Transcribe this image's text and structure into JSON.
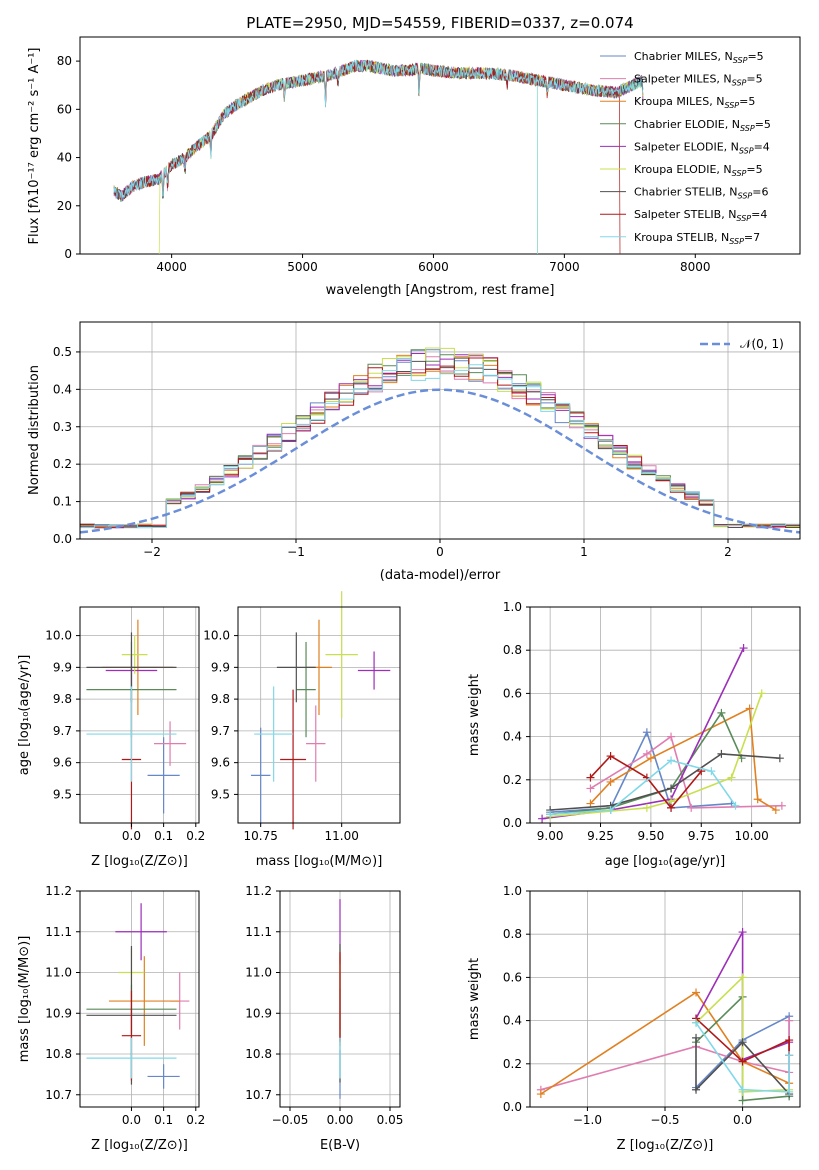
{
  "chart_data": [
    {
      "type": "line",
      "title": "PLATE=2950, MJD=54559, FIBERID=0337, z=0.074",
      "xlabel": "wavelength [Angstrom, rest frame]",
      "ylabel": "Flux [fλ10⁻¹⁷ erg cm⁻² s⁻¹ A⁻¹]",
      "xlim": [
        3300,
        8800
      ],
      "ylim": [
        0,
        90
      ],
      "xticks": [
        4000,
        5000,
        6000,
        7000,
        8000
      ],
      "yticks": [
        0,
        20,
        40,
        60,
        80
      ],
      "grid": false,
      "legend_position": "top-right",
      "spectrum_anchor_x": [
        3560,
        3620,
        3700,
        3800,
        3900,
        4000,
        4100,
        4200,
        4300,
        4400,
        4500,
        4600,
        4700,
        4800,
        4900,
        5000,
        5100,
        5200,
        5300,
        5400,
        5500,
        5600,
        5700,
        5800,
        5900,
        6000,
        6200,
        6400,
        6600,
        6800,
        7000,
        7200,
        7400,
        7600
      ],
      "spectrum_anchor_y": [
        26,
        24,
        28,
        30,
        31,
        37,
        40,
        45,
        49,
        58,
        62,
        65,
        68,
        70,
        71,
        72,
        73,
        74,
        76,
        78,
        78,
        77,
        76,
        76,
        77,
        76,
        75,
        75,
        74,
        72,
        70,
        68,
        67,
        72
      ],
      "series": [
        {
          "name": "Chabrier MILES, N_SSP=5",
          "label_main": "Chabrier MILES, N",
          "label_sub": "SSP",
          "label_end": "=5",
          "color": "#6687c8"
        },
        {
          "name": "Salpeter MILES, N_SSP=5",
          "label_main": "Salpeter MILES, N",
          "label_sub": "SSP",
          "label_end": "=5",
          "color": "#e07db0"
        },
        {
          "name": "Kroupa MILES, N_SSP=5",
          "label_main": "Kroupa MILES, N",
          "label_sub": "SSP",
          "label_end": "=5",
          "color": "#e08020"
        },
        {
          "name": "Chabrier ELODIE, N_SSP=5",
          "label_main": "Chabrier ELODIE, N",
          "label_sub": "SSP",
          "label_end": "=5",
          "color": "#5a8a5a"
        },
        {
          "name": "Salpeter ELODIE, N_SSP=4",
          "label_main": "Salpeter ELODIE, N",
          "label_sub": "SSP",
          "label_end": "=4",
          "color": "#9c2fb8"
        },
        {
          "name": "Kroupa ELODIE, N_SSP=5",
          "label_main": "Kroupa ELODIE, N",
          "label_sub": "SSP",
          "label_end": "=5",
          "color": "#c8e050"
        },
        {
          "name": "Chabrier STELIB, N_SSP=6",
          "label_main": "Chabrier STELIB, N",
          "label_sub": "SSP",
          "label_end": "=6",
          "color": "#505050"
        },
        {
          "name": "Salpeter STELIB, N_SSP=4",
          "label_main": "Salpeter STELIB, N",
          "label_sub": "SSP",
          "label_end": "=4",
          "color": "#b01818"
        },
        {
          "name": "Kroupa STELIB, N_SSP=7",
          "label_main": "Kroupa STELIB, N",
          "label_sub": "SSP",
          "label_end": "=7",
          "color": "#80d8e8"
        }
      ]
    },
    {
      "type": "histogram",
      "xlabel": "(data-model)/error",
      "ylabel": "Normed distribution",
      "xlim": [
        -2.5,
        2.5
      ],
      "ylim": [
        0,
        0.58
      ],
      "xticks": [
        -2,
        -1,
        0,
        1,
        2
      ],
      "yticks": [
        0.0,
        0.1,
        0.2,
        0.3,
        0.4,
        0.5
      ],
      "grid": true,
      "legend_position": "top-right",
      "reference_curve": {
        "label": "𝒩(0, 1)",
        "color": "#6a8ed8"
      },
      "bin_width": 0.1
    },
    {
      "type": "errorbar",
      "xlabel": "Z [log₁₀(Z/Z⊙)]",
      "ylabel": "age  [log₁₀(age/yr)]",
      "xlim": [
        -0.16,
        0.21
      ],
      "ylim": [
        9.41,
        10.09
      ],
      "xticks": [
        0.0,
        0.1,
        0.2
      ],
      "yticks": [
        9.5,
        9.6,
        9.7,
        9.8,
        9.9,
        10.0
      ],
      "points": [
        {
          "x": 0.1,
          "y": 9.56,
          "xerr": 0.05,
          "yerr": 0.12
        },
        {
          "x": 0.12,
          "y": 9.66,
          "xerr": 0.05,
          "yerr": 0.07
        },
        {
          "x": 0.02,
          "y": 9.9,
          "xerr": 0.11,
          "yerr": 0.15
        },
        {
          "x": 0.0,
          "y": 9.83,
          "xerr": 0.14,
          "yerr": 0.15
        },
        {
          "x": 0.0,
          "y": 9.89,
          "xerr": 0.08,
          "yerr": 0.05
        },
        {
          "x": 0.01,
          "y": 9.94,
          "xerr": 0.04,
          "yerr": 0.06
        },
        {
          "x": 0.0,
          "y": 9.9,
          "xerr": 0.14,
          "yerr": 0.11
        },
        {
          "x": 0.0,
          "y": 9.61,
          "xerr": 0.03,
          "yerr": 0.22
        },
        {
          "x": 0.0,
          "y": 9.69,
          "xerr": 0.14,
          "yerr": 0.15
        }
      ]
    },
    {
      "type": "errorbar",
      "xlabel": "mass [log₁₀(M/M⊙)]",
      "xlim": [
        10.68,
        11.18
      ],
      "ylim": [
        9.41,
        10.09
      ],
      "xticks": [
        10.75,
        11.0
      ],
      "yticks": [
        9.5,
        9.6,
        9.7,
        9.8,
        9.9,
        10.0
      ],
      "points": [
        {
          "x": 10.75,
          "y": 9.56,
          "xerr": 0.03,
          "yerr": 0.15
        },
        {
          "x": 10.92,
          "y": 9.66,
          "xerr": 0.03,
          "yerr": 0.12
        },
        {
          "x": 10.93,
          "y": 9.9,
          "xerr": 0.04,
          "yerr": 0.15
        },
        {
          "x": 10.89,
          "y": 9.83,
          "xerr": 0.03,
          "yerr": 0.15
        },
        {
          "x": 11.1,
          "y": 9.89,
          "xerr": 0.05,
          "yerr": 0.06
        },
        {
          "x": 11.0,
          "y": 9.94,
          "xerr": 0.05,
          "yerr": 0.2
        },
        {
          "x": 10.86,
          "y": 9.9,
          "xerr": 0.06,
          "yerr": 0.11
        },
        {
          "x": 10.85,
          "y": 9.61,
          "xerr": 0.04,
          "yerr": 0.22
        },
        {
          "x": 10.79,
          "y": 9.69,
          "xerr": 0.06,
          "yerr": 0.15
        }
      ]
    },
    {
      "type": "line",
      "xlabel": "age  [log₁₀(age/yr)]",
      "ylabel": "mass weight",
      "xlim": [
        8.9,
        10.24
      ],
      "ylim": [
        0,
        1.0
      ],
      "xticks": [
        9.0,
        9.25,
        9.5,
        9.75,
        10.0
      ],
      "yticks": [
        0.0,
        0.2,
        0.4,
        0.6,
        0.8,
        1.0
      ],
      "grid": true,
      "series": [
        {
          "name": "Chabrier MILES",
          "x": [
            9.0,
            9.3,
            9.48,
            9.6,
            9.9
          ],
          "y": [
            0.05,
            0.07,
            0.42,
            0.07,
            0.09
          ]
        },
        {
          "name": "Salpeter MILES",
          "x": [
            9.2,
            9.48,
            9.6,
            9.7,
            10.15
          ],
          "y": [
            0.16,
            0.32,
            0.4,
            0.07,
            0.08
          ]
        },
        {
          "name": "Kroupa MILES",
          "x": [
            9.2,
            9.3,
            9.5,
            9.99,
            10.03,
            10.12
          ],
          "y": [
            0.09,
            0.19,
            0.3,
            0.53,
            0.11,
            0.06
          ]
        },
        {
          "name": "Chabrier ELODIE",
          "x": [
            9.0,
            9.3,
            9.6,
            9.85,
            9.95
          ],
          "y": [
            0.04,
            0.07,
            0.16,
            0.51,
            0.3
          ]
        },
        {
          "name": "Salpeter ELODIE",
          "x": [
            8.96,
            9.3,
            9.6,
            9.96
          ],
          "y": [
            0.02,
            0.06,
            0.11,
            0.81
          ]
        },
        {
          "name": "Kroupa ELODIE",
          "x": [
            9.0,
            9.48,
            9.6,
            9.9,
            10.05
          ],
          "y": [
            0.03,
            0.07,
            0.1,
            0.21,
            0.6
          ]
        },
        {
          "name": "Chabrier STELIB",
          "x": [
            9.0,
            9.3,
            9.6,
            9.85,
            10.14
          ],
          "y": [
            0.06,
            0.08,
            0.16,
            0.32,
            0.3
          ]
        },
        {
          "name": "Salpeter STELIB",
          "x": [
            9.2,
            9.3,
            9.48,
            9.6,
            9.75
          ],
          "y": [
            0.21,
            0.31,
            0.21,
            0.07,
            0.24
          ]
        },
        {
          "name": "Kroupa STELIB",
          "x": [
            9.0,
            9.3,
            9.6,
            9.8,
            9.92
          ],
          "y": [
            0.04,
            0.06,
            0.29,
            0.24,
            0.08
          ]
        }
      ]
    },
    {
      "type": "errorbar",
      "xlabel": "Z [log₁₀(Z/Z⊙)]",
      "ylabel": "mass [log₁₀(M/M⊙)]",
      "xlim": [
        -0.16,
        0.21
      ],
      "ylim": [
        10.67,
        11.2
      ],
      "xticks": [
        0.0,
        0.1,
        0.2
      ],
      "yticks": [
        10.7,
        10.8,
        10.9,
        11.0,
        11.1,
        11.2
      ],
      "points": [
        {
          "x": 0.1,
          "y": 10.745,
          "xerr": 0.05,
          "yerr": 0.03
        },
        {
          "x": 0.15,
          "y": 10.93,
          "xerr": 0.03,
          "yerr": 0.07
        },
        {
          "x": 0.04,
          "y": 10.93,
          "xerr": 0.11,
          "yerr": 0.11
        },
        {
          "x": 0.0,
          "y": 10.91,
          "xerr": 0.14,
          "yerr": 0.06
        },
        {
          "x": 0.03,
          "y": 11.1,
          "xerr": 0.08,
          "yerr": 0.07
        },
        {
          "x": 0.0,
          "y": 11.0,
          "xerr": 0.04,
          "yerr": 0.06
        },
        {
          "x": 0.0,
          "y": 10.895,
          "xerr": 0.14,
          "yerr": 0.17
        },
        {
          "x": 0.0,
          "y": 10.845,
          "xerr": 0.03,
          "yerr": 0.11
        },
        {
          "x": 0.0,
          "y": 10.79,
          "xerr": 0.14,
          "yerr": 0.05
        }
      ]
    },
    {
      "type": "errorbar",
      "xlabel": "E(B-V)",
      "xlim": [
        -0.06,
        0.06
      ],
      "ylim": [
        10.67,
        11.2
      ],
      "xticks": [
        -0.05,
        0.0,
        0.05
      ],
      "yticks": [
        10.7,
        10.8,
        10.9,
        11.0,
        11.1,
        11.2
      ],
      "points": [
        {
          "x": 0.0,
          "y": 10.75,
          "xerr": 0.0,
          "yerr": 0.06
        },
        {
          "x": 0.0,
          "y": 10.93,
          "xerr": 0.0,
          "yerr": 0.07
        },
        {
          "x": 0.0,
          "y": 10.93,
          "xerr": 0.0,
          "yerr": 0.11
        },
        {
          "x": 0.0,
          "y": 10.9,
          "xerr": 0.0,
          "yerr": 0.06
        },
        {
          "x": 0.0,
          "y": 11.1,
          "xerr": 0.0,
          "yerr": 0.08
        },
        {
          "x": 0.0,
          "y": 11.0,
          "xerr": 0.0,
          "yerr": 0.06
        },
        {
          "x": 0.0,
          "y": 10.9,
          "xerr": 0.0,
          "yerr": 0.17
        },
        {
          "x": 0.0,
          "y": 10.94,
          "xerr": 0.0,
          "yerr": 0.11
        },
        {
          "x": 0.0,
          "y": 10.79,
          "xerr": 0.0,
          "yerr": 0.05
        }
      ]
    },
    {
      "type": "line",
      "xlabel": "Z [log₁₀(Z/Z⊙)]",
      "ylabel": "mass weight",
      "xlim": [
        -1.37,
        0.37
      ],
      "ylim": [
        0,
        1.0
      ],
      "xticks": [
        -1.0,
        -0.5,
        0.0
      ],
      "yticks": [
        0.0,
        0.2,
        0.4,
        0.6,
        0.8,
        1.0
      ],
      "grid": true,
      "series": [
        {
          "name": "Chabrier MILES",
          "x": [
            -0.3,
            0.0,
            0.3,
            0.3
          ],
          "y": [
            0.09,
            0.31,
            0.42,
            0.05
          ]
        },
        {
          "name": "Salpeter MILES",
          "x": [
            -1.3,
            -0.3,
            0.0,
            0.3,
            0.3
          ],
          "y": [
            0.08,
            0.28,
            0.21,
            0.16,
            0.4
          ]
        },
        {
          "name": "Kroupa MILES",
          "x": [
            -1.3,
            -0.3,
            0.0,
            0.3
          ],
          "y": [
            0.06,
            0.53,
            0.21,
            0.11
          ]
        },
        {
          "name": "Chabrier ELODIE",
          "x": [
            -0.3,
            0.0,
            0.0,
            0.3
          ],
          "y": [
            0.3,
            0.51,
            0.03,
            0.05
          ]
        },
        {
          "name": "Salpeter ELODIE",
          "x": [
            -0.3,
            0.0,
            0.0,
            0.3
          ],
          "y": [
            0.41,
            0.81,
            0.22,
            0.3
          ]
        },
        {
          "name": "Kroupa ELODIE",
          "x": [
            -0.3,
            0.0,
            0.0,
            0.3
          ],
          "y": [
            0.39,
            0.6,
            0.07,
            0.08
          ]
        },
        {
          "name": "Chabrier STELIB",
          "x": [
            -0.3,
            -0.3,
            0.0,
            0.3
          ],
          "y": [
            0.32,
            0.08,
            0.3,
            0.06
          ]
        },
        {
          "name": "Salpeter STELIB",
          "x": [
            -0.3,
            0.0,
            0.3,
            0.3
          ],
          "y": [
            0.41,
            0.21,
            0.31,
            0.24
          ]
        },
        {
          "name": "Kroupa STELIB",
          "x": [
            -0.3,
            0.0,
            0.3,
            0.3
          ],
          "y": [
            0.39,
            0.08,
            0.07,
            0.24
          ]
        }
      ]
    }
  ]
}
